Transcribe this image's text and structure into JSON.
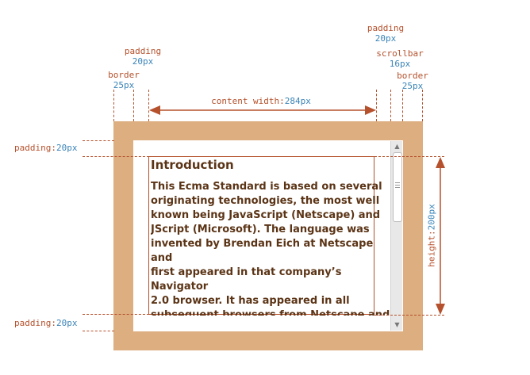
{
  "labels": {
    "padding_top_right": {
      "name": "padding",
      "value": "20px"
    },
    "scrollbar": {
      "name": "scrollbar",
      "value": "16px"
    },
    "border_right": {
      "name": "border",
      "value": "25px"
    },
    "padding_top_left": {
      "name": "padding",
      "value": "20px"
    },
    "border_left": {
      "name": "border",
      "value": "25px"
    },
    "content_width": {
      "name": "content width:",
      "value": "284px"
    },
    "padding_left_top": {
      "name": "padding:",
      "value": "20px"
    },
    "padding_left_bottom": {
      "name": "padding:",
      "value": "20px"
    },
    "height": {
      "name": "height:",
      "value": "200px"
    }
  },
  "content": {
    "heading": "Introduction",
    "paragraph": "This Ecma Standard is based on several\noriginating technologies, the most well\nknown being JavaScript (Netscape) and\nJScript (Microsoft). The language was\ninvented by Brendan Eich at Netscape and\nfirst appeared in that company’s Navigator\n2.0 browser. It has appeared in all\nsubsequent browsers from Netscape and\nin all browsers from Microsoft starting with"
  },
  "colors": {
    "border": "#dcae80",
    "annotation": "#b5512c",
    "value": "#3a84b8",
    "text": "#5b3416"
  }
}
